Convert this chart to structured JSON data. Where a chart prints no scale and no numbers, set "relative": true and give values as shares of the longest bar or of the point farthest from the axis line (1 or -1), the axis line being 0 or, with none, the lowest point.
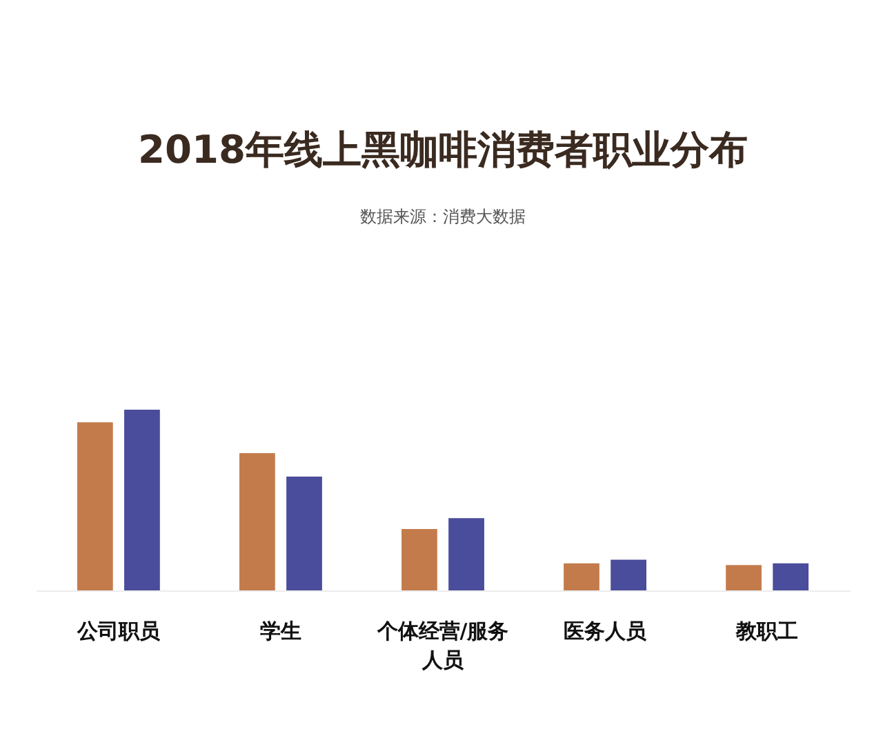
{
  "chart_data": {
    "type": "bar",
    "title": "2018年线上黑咖啡消费者职业分布",
    "subtitle": "数据来源：消费大数据",
    "categories": [
      "公司职员",
      "学生",
      "个体经营/服务人员",
      "医务人员",
      "教职工"
    ],
    "relative": true,
    "series": [
      {
        "color": "#c47b4c",
        "values": [
          0.93,
          0.76,
          0.34,
          0.15,
          0.14
        ]
      },
      {
        "color": "#4a4c9c",
        "values": [
          1.0,
          0.63,
          0.4,
          0.17,
          0.15
        ]
      }
    ]
  }
}
